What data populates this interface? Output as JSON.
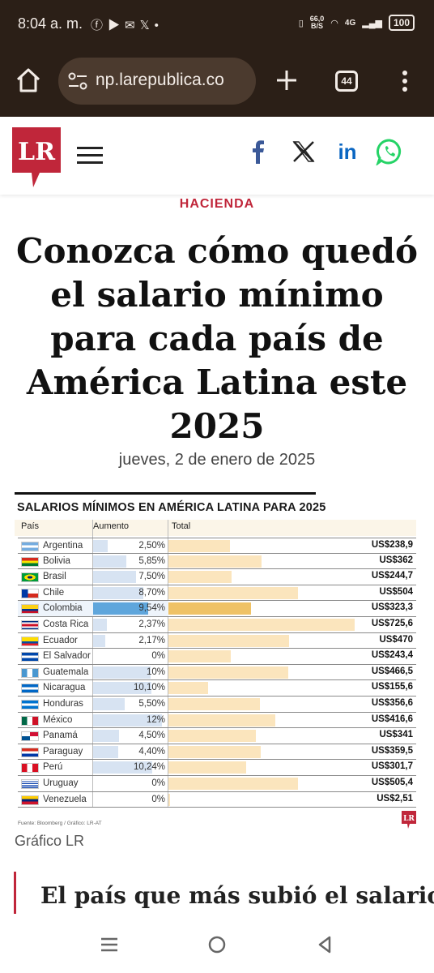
{
  "status_bar": {
    "time": "8:04 a. m.",
    "network_speed_value": "66,0",
    "network_speed_unit": "B/S",
    "battery": "100",
    "signal": "4G"
  },
  "browser": {
    "url": "np.larepublica.co",
    "tab_count": "44"
  },
  "site": {
    "logo_text": "LR"
  },
  "article": {
    "section": "HACIENDA",
    "headline": "Conozca cómo quedó el salario mínimo para cada país de América Latina este 2025",
    "date": "jueves, 2 de enero de 2025",
    "image_caption": "Gráfico LR",
    "subheading": "El país que más subió el salario"
  },
  "chart_data": {
    "type": "table",
    "title": "SALARIOS MÍNIMOS EN AMÉRICA LATINA PARA 2025",
    "columns": [
      "País",
      "Aumento",
      "Total"
    ],
    "rows": [
      {
        "country": "Argentina",
        "increase": "2,50%",
        "increase_value": 2.5,
        "total": "US$238,9",
        "total_value": 238.9,
        "flag": "argentina"
      },
      {
        "country": "Bolivia",
        "increase": "5,85%",
        "increase_value": 5.85,
        "total": "US$362",
        "total_value": 362,
        "flag": "bolivia"
      },
      {
        "country": "Brasil",
        "increase": "7,50%",
        "increase_value": 7.5,
        "total": "US$244,7",
        "total_value": 244.7,
        "flag": "brasil"
      },
      {
        "country": "Chile",
        "increase": "8,70%",
        "increase_value": 8.7,
        "total": "US$504",
        "total_value": 504,
        "flag": "chile"
      },
      {
        "country": "Colombia",
        "increase": "9,54%",
        "increase_value": 9.54,
        "total": "US$323,3",
        "total_value": 323.3,
        "flag": "colombia",
        "highlight": true
      },
      {
        "country": "Costa Rica",
        "increase": "2,37%",
        "increase_value": 2.37,
        "total": "US$725,6",
        "total_value": 725.6,
        "flag": "costa-rica"
      },
      {
        "country": "Ecuador",
        "increase": "2,17%",
        "increase_value": 2.17,
        "total": "US$470",
        "total_value": 470,
        "flag": "ecuador"
      },
      {
        "country": "El Salvador",
        "increase": "0%",
        "increase_value": 0,
        "total": "US$243,4",
        "total_value": 243.4,
        "flag": "el-salvador"
      },
      {
        "country": "Guatemala",
        "increase": "10%",
        "increase_value": 10,
        "total": "US$466,5",
        "total_value": 466.5,
        "flag": "guatemala"
      },
      {
        "country": "Nicaragua",
        "increase": "10,10%",
        "increase_value": 10.1,
        "total": "US$155,6",
        "total_value": 155.6,
        "flag": "nicaragua"
      },
      {
        "country": "Honduras",
        "increase": "5,50%",
        "increase_value": 5.5,
        "total": "US$356,6",
        "total_value": 356.6,
        "flag": "honduras"
      },
      {
        "country": "México",
        "increase": "12%",
        "increase_value": 12,
        "total": "US$416,6",
        "total_value": 416.6,
        "flag": "mexico"
      },
      {
        "country": "Panamá",
        "increase": "4,50%",
        "increase_value": 4.5,
        "total": "US$341",
        "total_value": 341,
        "flag": "panama"
      },
      {
        "country": "Paraguay",
        "increase": "4,40%",
        "increase_value": 4.4,
        "total": "US$359,5",
        "total_value": 359.5,
        "flag": "paraguay"
      },
      {
        "country": "Perú",
        "increase": "10,24%",
        "increase_value": 10.24,
        "total": "US$301,7",
        "total_value": 301.7,
        "flag": "peru"
      },
      {
        "country": "Uruguay",
        "increase": "0%",
        "increase_value": 0,
        "total": "US$505,4",
        "total_value": 505.4,
        "flag": "uruguay"
      },
      {
        "country": "Venezuela",
        "increase": "0%",
        "increase_value": 0,
        "total": "US$2,51",
        "total_value": 2.51,
        "flag": "venezuela"
      }
    ],
    "increase_max": 12,
    "total_max": 725.6,
    "source": "Fuente: Bloomberg / Gráfico: LR-AT",
    "colors": {
      "increase_bar": "#d7e3f2",
      "increase_bar_highlight": "#5fa6dc",
      "total_bar": "#fbe5bd",
      "total_bar_highlight": "#efc266"
    }
  },
  "colors": {
    "brand_red": "#c0263a",
    "browser_bar": "#2b1f17",
    "facebook": "#3b5998",
    "linkedin": "#0a66c2",
    "whatsapp": "#25d366"
  },
  "icons": [
    "home-icon",
    "site-info-icon",
    "new-tab-icon",
    "tab-switcher-icon",
    "more-menu-icon",
    "hamburger-menu-icon",
    "facebook-icon",
    "x-icon",
    "linkedin-icon",
    "whatsapp-icon",
    "recents-icon",
    "home-nav-icon",
    "back-icon"
  ]
}
